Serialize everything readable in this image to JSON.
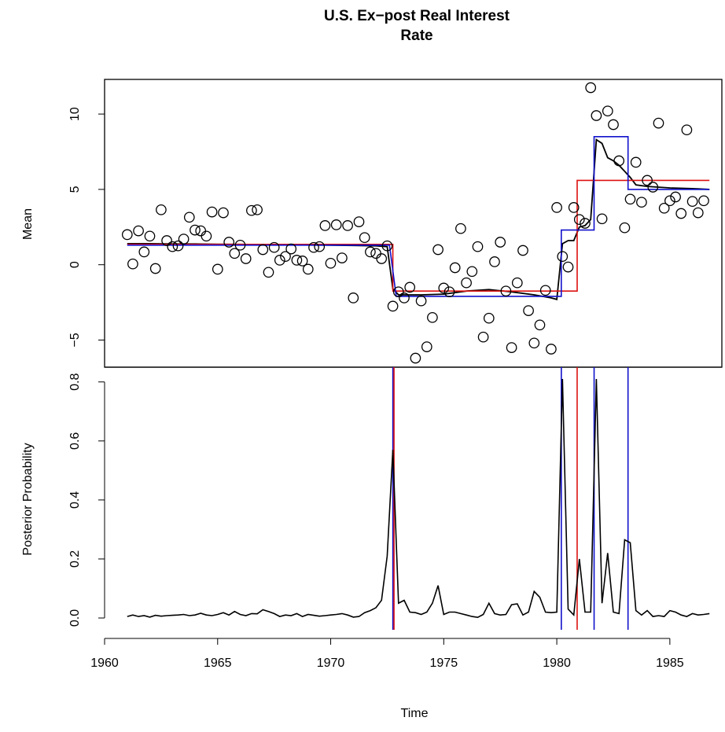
{
  "chart_data": [
    {
      "type": "scatter",
      "panel": "top",
      "title_lines": [
        "U.S. Ex−post Real Interest",
        "Rate"
      ],
      "ylabel": "Mean",
      "xlim": [
        1960,
        1987.3
      ],
      "ylim": [
        -6.8,
        12.3
      ],
      "yticks": [
        -5,
        0,
        5,
        10
      ],
      "yticklabels": [
        "−5",
        "0",
        "5",
        "10"
      ],
      "points": {
        "x": [
          1961.0,
          1961.25,
          1961.5,
          1961.75,
          1962.0,
          1962.25,
          1962.5,
          1962.75,
          1963.0,
          1963.25,
          1963.5,
          1963.75,
          1964.0,
          1964.25,
          1964.5,
          1964.75,
          1965.0,
          1965.25,
          1965.5,
          1965.75,
          1966.0,
          1966.25,
          1966.5,
          1966.75,
          1967.0,
          1967.25,
          1967.5,
          1967.75,
          1968.0,
          1968.25,
          1968.5,
          1968.75,
          1969.0,
          1969.25,
          1969.5,
          1969.75,
          1970.0,
          1970.25,
          1970.5,
          1970.75,
          1971.0,
          1971.25,
          1971.5,
          1971.75,
          1972.0,
          1972.25,
          1972.5,
          1972.75,
          1973.0,
          1973.25,
          1973.5,
          1973.75,
          1974.0,
          1974.25,
          1974.5,
          1974.75,
          1975.0,
          1975.25,
          1975.5,
          1975.75,
          1976.0,
          1976.25,
          1976.5,
          1976.75,
          1977.0,
          1977.25,
          1977.5,
          1977.75,
          1978.0,
          1978.25,
          1978.5,
          1978.75,
          1979.0,
          1979.25,
          1979.5,
          1979.75,
          1980.0,
          1980.25,
          1980.5,
          1980.75,
          1981.0,
          1981.25,
          1981.5,
          1981.75,
          1982.0,
          1982.25,
          1982.5,
          1982.75,
          1983.0,
          1983.25,
          1983.5,
          1983.75,
          1984.0,
          1984.25,
          1984.5,
          1984.75,
          1985.0,
          1985.25,
          1985.5,
          1985.75,
          1986.0,
          1986.25,
          1986.5
        ],
        "y": [
          2.0,
          0.05,
          2.25,
          0.85,
          1.9,
          -0.25,
          3.65,
          1.6,
          1.2,
          1.25,
          1.7,
          3.15,
          2.3,
          2.25,
          1.9,
          3.5,
          -0.3,
          3.45,
          1.5,
          0.75,
          1.3,
          0.4,
          3.6,
          3.65,
          1.0,
          -0.5,
          1.15,
          0.3,
          0.55,
          1.05,
          0.3,
          0.25,
          -0.3,
          1.15,
          1.2,
          2.6,
          0.1,
          2.65,
          0.45,
          2.6,
          -2.2,
          2.85,
          1.8,
          0.85,
          0.75,
          0.4,
          1.25,
          -2.75,
          -1.8,
          -2.2,
          -1.5,
          -6.2,
          -2.4,
          -5.45,
          -3.5,
          1.0,
          -1.55,
          -1.8,
          -0.2,
          2.4,
          -1.2,
          -0.45,
          1.2,
          -4.8,
          -3.55,
          0.2,
          1.5,
          -1.75,
          -5.5,
          -1.2,
          0.95,
          -3.05,
          -5.2,
          -4.0,
          -1.7,
          -5.6,
          3.8,
          0.55,
          -0.15,
          3.8,
          3.0,
          2.75,
          11.75,
          9.9,
          3.05,
          10.2,
          9.3,
          6.9,
          2.45,
          4.35,
          6.8,
          4.15,
          5.6,
          5.15,
          9.4,
          3.75,
          4.25,
          4.5,
          3.4,
          8.95,
          4.2,
          3.45,
          4.25
        ]
      },
      "series": [
        {
          "name": "",
          "color": "#000000",
          "x": [
            1961.0,
            1962.0,
            1963.0,
            1964.0,
            1965.0,
            1966.0,
            1967.0,
            1968.0,
            1969.0,
            1970.0,
            1971.0,
            1972.0,
            1972.5,
            1972.75,
            1973.0,
            1974.0,
            1975.0,
            1976.0,
            1977.0,
            1978.0,
            1979.0,
            1979.75,
            1980.0,
            1980.25,
            1980.5,
            1980.75,
            1981.0,
            1981.25,
            1981.5,
            1981.75,
            1982.0,
            1982.25,
            1982.5,
            1982.75,
            1983.0,
            1983.25,
            1983.5,
            1984.0,
            1985.0,
            1986.0,
            1986.75
          ],
          "y": [
            1.4,
            1.4,
            1.38,
            1.38,
            1.36,
            1.35,
            1.33,
            1.32,
            1.31,
            1.3,
            1.28,
            1.25,
            1.2,
            -1.6,
            -2.0,
            -2.0,
            -1.95,
            -1.75,
            -1.65,
            -1.8,
            -2.0,
            -2.2,
            -2.3,
            1.4,
            1.6,
            1.6,
            2.5,
            2.6,
            3.0,
            8.3,
            8.05,
            7.1,
            6.9,
            6.6,
            6.2,
            5.8,
            5.3,
            5.2,
            5.1,
            5.05,
            5.0
          ]
        },
        {
          "name": "",
          "color": "#dd1111",
          "x": [
            1961.0,
            1972.75,
            1972.75,
            1980.9,
            1980.9,
            1986.75
          ],
          "y": [
            1.35,
            1.35,
            -1.75,
            -1.75,
            5.6,
            5.6
          ]
        },
        {
          "name": "",
          "color": "#1111cc",
          "x": [
            1961.0,
            1972.6,
            1972.9,
            1980.2,
            1980.2,
            1981.65,
            1981.65,
            1983.15,
            1983.15,
            1986.75
          ],
          "y": [
            1.3,
            1.3,
            -2.1,
            -2.1,
            2.3,
            2.3,
            8.5,
            8.5,
            5.0,
            5.0
          ]
        }
      ]
    },
    {
      "type": "line",
      "panel": "bottom",
      "xlabel": "Time",
      "ylabel": "Posterior Probability",
      "xlim": [
        1960,
        1987.3
      ],
      "ylim": [
        -0.04,
        0.85
      ],
      "xticks": [
        1960,
        1965,
        1970,
        1975,
        1980,
        1985
      ],
      "xticklabels": [
        "1960",
        "1965",
        "1970",
        "1975",
        "1980",
        "1985"
      ],
      "yticks": [
        0.0,
        0.2,
        0.4,
        0.6,
        0.8
      ],
      "yticklabels": [
        "0.0",
        "0.2",
        "0.4",
        "0.6",
        "0.8"
      ],
      "series": [
        {
          "name": "",
          "color": "#000000",
          "x": [
            1961.0,
            1961.25,
            1961.5,
            1961.75,
            1962.0,
            1962.25,
            1962.5,
            1962.75,
            1963.0,
            1963.25,
            1963.5,
            1963.75,
            1964.0,
            1964.25,
            1964.5,
            1964.75,
            1965.0,
            1965.25,
            1965.5,
            1965.75,
            1966.0,
            1966.25,
            1966.5,
            1966.75,
            1967.0,
            1967.25,
            1967.5,
            1967.75,
            1968.0,
            1968.25,
            1968.5,
            1968.75,
            1969.0,
            1969.25,
            1969.5,
            1969.75,
            1970.0,
            1970.25,
            1970.5,
            1970.75,
            1971.0,
            1971.25,
            1971.5,
            1971.75,
            1972.0,
            1972.25,
            1972.5,
            1972.75,
            1973.0,
            1973.25,
            1973.5,
            1973.75,
            1974.0,
            1974.25,
            1974.5,
            1974.75,
            1975.0,
            1975.25,
            1975.5,
            1975.75,
            1976.0,
            1976.25,
            1976.5,
            1976.75,
            1977.0,
            1977.25,
            1977.5,
            1977.75,
            1978.0,
            1978.25,
            1978.5,
            1978.75,
            1979.0,
            1979.25,
            1979.5,
            1979.75,
            1980.0,
            1980.25,
            1980.5,
            1980.75,
            1981.0,
            1981.25,
            1981.5,
            1981.75,
            1982.0,
            1982.25,
            1982.5,
            1982.75,
            1983.0,
            1983.25,
            1983.5,
            1983.75,
            1984.0,
            1984.25,
            1984.5,
            1984.75,
            1985.0,
            1985.25,
            1985.5,
            1985.75,
            1986.0,
            1986.25,
            1986.5,
            1986.75
          ],
          "y": [
            0.005,
            0.01,
            0.005,
            0.008,
            0.003,
            0.009,
            0.006,
            0.008,
            0.009,
            0.01,
            0.012,
            0.008,
            0.01,
            0.016,
            0.01,
            0.008,
            0.012,
            0.018,
            0.01,
            0.022,
            0.012,
            0.008,
            0.015,
            0.014,
            0.028,
            0.022,
            0.015,
            0.005,
            0.01,
            0.008,
            0.015,
            0.005,
            0.012,
            0.009,
            0.006,
            0.008,
            0.01,
            0.012,
            0.015,
            0.01,
            0.003,
            0.005,
            0.018,
            0.025,
            0.035,
            0.06,
            0.21,
            0.57,
            0.05,
            0.06,
            0.02,
            0.018,
            0.012,
            0.02,
            0.05,
            0.11,
            0.012,
            0.02,
            0.02,
            0.015,
            0.01,
            0.005,
            0.002,
            0.012,
            0.05,
            0.015,
            0.01,
            0.012,
            0.045,
            0.048,
            0.01,
            0.02,
            0.09,
            0.07,
            0.02,
            0.018,
            0.02,
            0.81,
            0.03,
            0.01,
            0.2,
            0.02,
            0.02,
            0.81,
            0.05,
            0.22,
            0.02,
            0.015,
            0.265,
            0.255,
            0.025,
            0.01,
            0.025,
            0.005,
            0.008,
            0.005,
            0.025,
            0.02,
            0.01,
            0.005,
            0.015,
            0.01,
            0.012,
            0.015
          ]
        }
      ],
      "vlines": [
        {
          "x": 1972.75,
          "color": "#1111cc"
        },
        {
          "x": 1972.8,
          "color": "#dd1111"
        },
        {
          "x": 1980.2,
          "color": "#1111cc"
        },
        {
          "x": 1980.9,
          "color": "#dd1111"
        },
        {
          "x": 1981.65,
          "color": "#1111cc"
        },
        {
          "x": 1983.15,
          "color": "#1111cc"
        }
      ]
    }
  ]
}
